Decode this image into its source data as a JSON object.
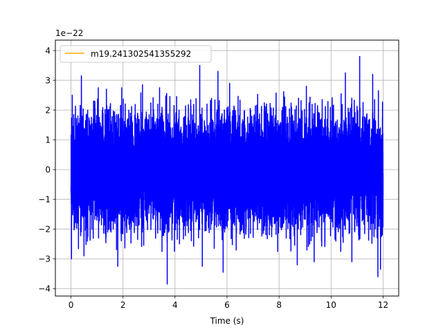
{
  "chart_data": {
    "type": "line",
    "title": "",
    "xlabel": "Time (s)",
    "ylabel": "",
    "y_offset_text": "1e−22",
    "xlim": [
      -0.6,
      12.6
    ],
    "ylim": [
      -4.25,
      4.35
    ],
    "x_ticks": [
      0,
      2,
      4,
      6,
      8,
      10,
      12
    ],
    "x_tick_labels": [
      "0",
      "2",
      "4",
      "6",
      "8",
      "10",
      "12"
    ],
    "y_ticks": [
      -4,
      -3,
      -2,
      -1,
      0,
      1,
      2,
      3,
      4
    ],
    "y_tick_labels": [
      "−4",
      "−3",
      "−2",
      "−1",
      "0",
      "1",
      "2",
      "3",
      "4"
    ],
    "grid": true,
    "legend": {
      "placement": "upper-left",
      "entries": [
        {
          "name": "m19.241302541355292",
          "color": "#ffa500"
        }
      ]
    },
    "series": [
      {
        "name": "m19.241302541355292",
        "legend_color": "#ffa500",
        "color": "#0000ff",
        "x_range": [
          0,
          12
        ],
        "typical_amplitude": 1.8,
        "max": 3.8,
        "min": -3.85,
        "peaks": [
          {
            "x": 0.05,
            "y": 2.5
          },
          {
            "x": 0.4,
            "y": 3.15
          },
          {
            "x": 1.05,
            "y": 2.75
          },
          {
            "x": 1.95,
            "y": 2.75
          },
          {
            "x": 2.75,
            "y": 2.85
          },
          {
            "x": 3.7,
            "y": 2.8
          },
          {
            "x": 4.95,
            "y": 3.5
          },
          {
            "x": 5.65,
            "y": 3.3
          },
          {
            "x": 6.1,
            "y": 2.9
          },
          {
            "x": 9.05,
            "y": 2.8
          },
          {
            "x": 10.55,
            "y": 3.25
          },
          {
            "x": 11.1,
            "y": 3.8
          },
          {
            "x": 11.6,
            "y": 3.2
          },
          {
            "x": 11.82,
            "y": 2.65
          }
        ],
        "troughs": [
          {
            "x": 0.02,
            "y": -3.0
          },
          {
            "x": 0.5,
            "y": -2.9
          },
          {
            "x": 1.8,
            "y": -3.25
          },
          {
            "x": 3.7,
            "y": -3.85
          },
          {
            "x": 5.05,
            "y": -3.25
          },
          {
            "x": 5.85,
            "y": -3.45
          },
          {
            "x": 8.7,
            "y": -3.2
          },
          {
            "x": 9.35,
            "y": -3.1
          },
          {
            "x": 10.8,
            "y": -3.1
          },
          {
            "x": 11.8,
            "y": -3.6
          },
          {
            "x": 11.9,
            "y": -3.35
          }
        ]
      }
    ]
  }
}
